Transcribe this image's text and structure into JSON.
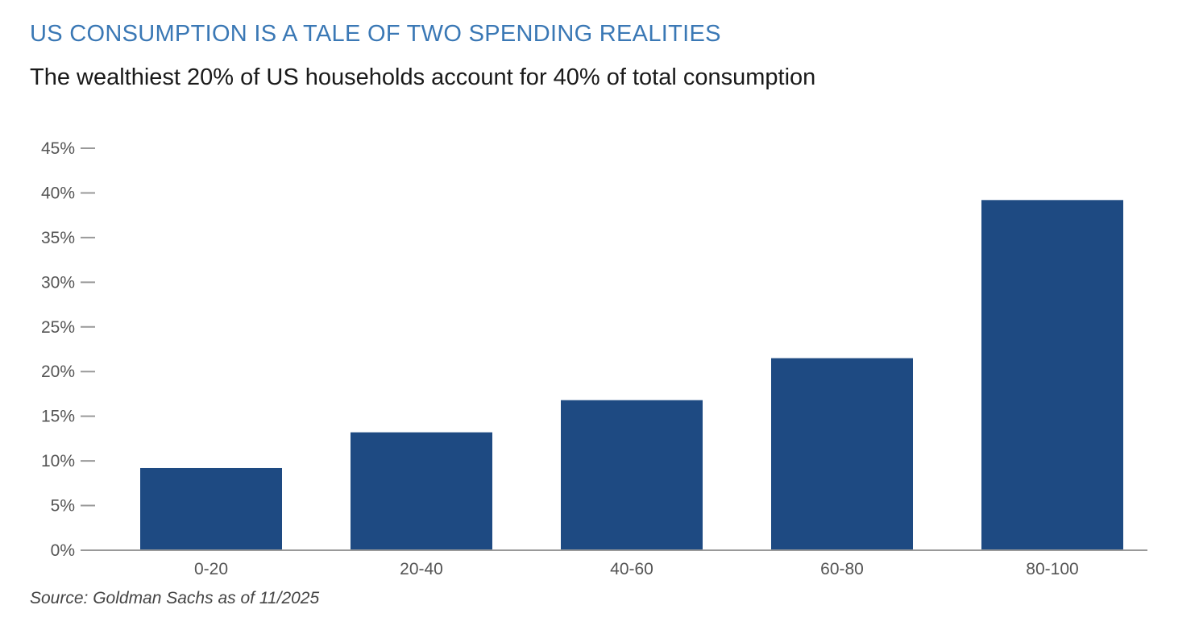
{
  "header": {
    "title": "US CONSUMPTION IS A TALE OF TWO SPENDING REALITIES",
    "subtitle": "The wealthiest 20% of US households account for 40% of total consumption"
  },
  "footer": {
    "source": "Source: Goldman Sachs as of 11/2025"
  },
  "colors": {
    "title": "#3a78b5",
    "bar": "#1e4a82",
    "axis": "#999999"
  },
  "chart_data": {
    "type": "bar",
    "title": "US CONSUMPTION IS A TALE OF TWO SPENDING REALITIES",
    "subtitle": "The wealthiest 20% of US households account for 40% of total consumption",
    "categories": [
      "0-20",
      "20-40",
      "40-60",
      "60-80",
      "80-100"
    ],
    "values": [
      9.2,
      13.2,
      16.8,
      21.5,
      39.2
    ],
    "xlabel": "",
    "ylabel": "",
    "ylim": [
      0,
      45
    ],
    "yticks": [
      0,
      5,
      10,
      15,
      20,
      25,
      30,
      35,
      40,
      45
    ],
    "ytick_labels": [
      "0%",
      "5%",
      "10%",
      "15%",
      "20%",
      "25%",
      "30%",
      "35%",
      "40%",
      "45%"
    ],
    "grid": false,
    "legend": "none"
  }
}
